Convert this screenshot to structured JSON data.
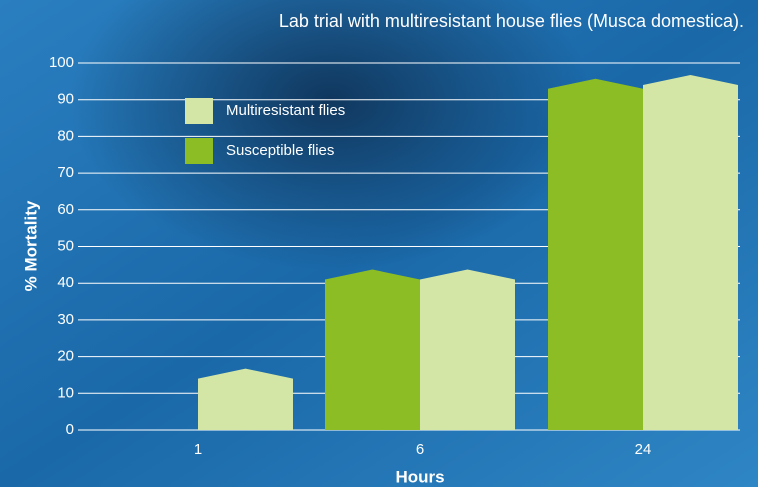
{
  "chart_data": {
    "type": "bar",
    "title": "Lab trial with multiresistant house flies (Musca domestica).",
    "x_label": "Hours",
    "y_label": "% Mortality",
    "categories": [
      "1",
      "6",
      "24"
    ],
    "series": [
      {
        "name": "Multiresistant flies",
        "color": "#d4e6a5",
        "values": [
          14,
          41,
          94
        ]
      },
      {
        "name": "Susceptible flies",
        "color": "#8cbd24",
        "values": [
          0,
          41,
          93
        ]
      }
    ],
    "ylim": [
      0,
      100
    ],
    "yticks": [
      0,
      10,
      20,
      30,
      40,
      50,
      60,
      70,
      80,
      90,
      100
    ],
    "grid": true
  }
}
